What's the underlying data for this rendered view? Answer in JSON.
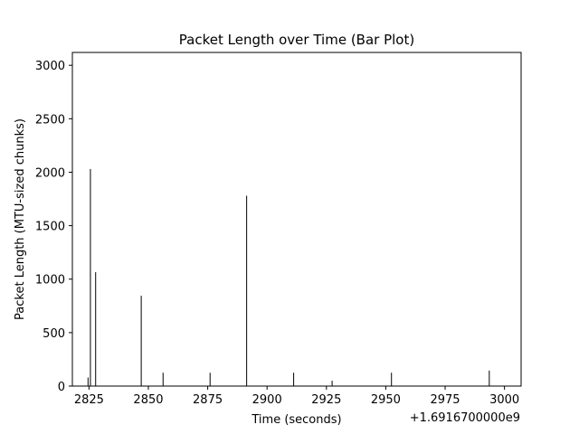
{
  "chart_data": {
    "type": "bar",
    "title": "Packet Length over Time (Bar Plot)",
    "xlabel": "Time (seconds)",
    "ylabel": "Packet Length (MTU-sized chunks)",
    "x_offset_label": "+1.6916700000e9",
    "xlim": [
      2818,
      3007
    ],
    "ylim": [
      0,
      3120
    ],
    "xticks": [
      2825,
      2850,
      2875,
      2900,
      2925,
      2950,
      2975,
      3000
    ],
    "yticks": [
      0,
      500,
      1000,
      1500,
      2000,
      2500,
      3000
    ],
    "grid": false,
    "bar_color": "#000000",
    "bars": [
      {
        "x": 2824.6,
        "value": 80
      },
      {
        "x": 2825.6,
        "value": 2030
      },
      {
        "x": 2827.8,
        "value": 1065
      },
      {
        "x": 2847.0,
        "value": 845
      },
      {
        "x": 2856.2,
        "value": 125
      },
      {
        "x": 2876.0,
        "value": 125
      },
      {
        "x": 2891.4,
        "value": 1780
      },
      {
        "x": 2911.2,
        "value": 125
      },
      {
        "x": 2927.4,
        "value": 50
      },
      {
        "x": 2952.4,
        "value": 125
      },
      {
        "x": 2993.6,
        "value": 145
      }
    ]
  }
}
